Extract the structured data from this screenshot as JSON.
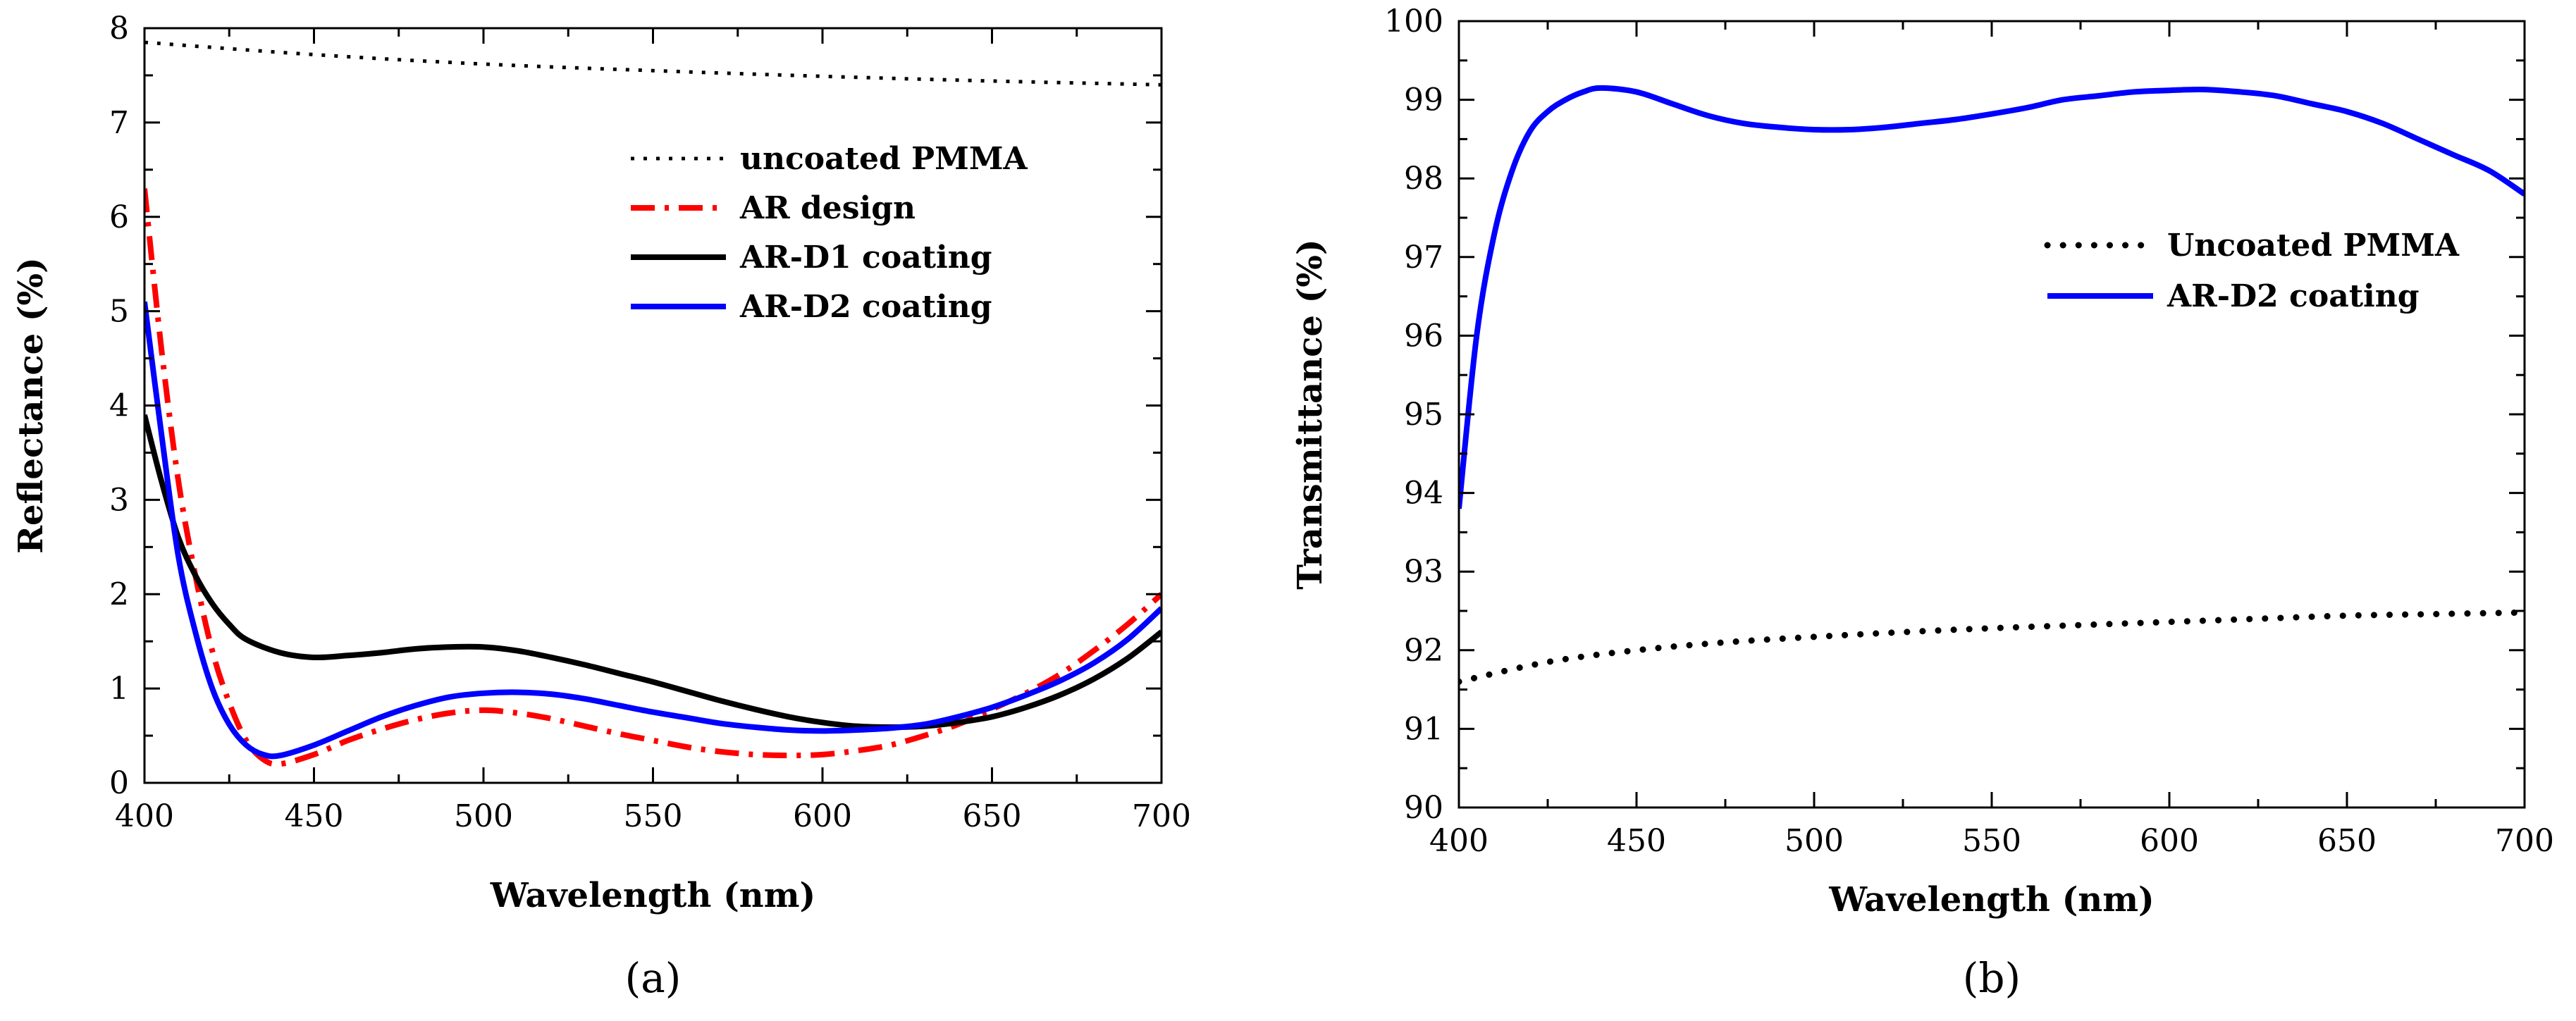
{
  "chart_data": [
    {
      "type": "line",
      "panel_label": "(a)",
      "xlabel": "Wavelength (nm)",
      "ylabel": "Reflectance (%)",
      "xlim": [
        400,
        700
      ],
      "ylim": [
        0,
        8
      ],
      "xticks": [
        400,
        450,
        500,
        550,
        600,
        650,
        700
      ],
      "yticks": [
        0,
        1,
        2,
        3,
        4,
        5,
        6,
        7,
        8
      ],
      "legend_position": "upper-right",
      "series": [
        {
          "name": "uncoated PMMA",
          "color": "#000000",
          "style": "dotted",
          "x": [
            400,
            450,
            500,
            550,
            600,
            650,
            700
          ],
          "y": [
            7.85,
            7.72,
            7.62,
            7.55,
            7.49,
            7.44,
            7.4
          ]
        },
        {
          "name": "AR design",
          "color": "#ff0000",
          "style": "dashdot",
          "x": [
            400,
            405,
            410,
            415,
            420,
            425,
            430,
            435,
            440,
            450,
            460,
            470,
            480,
            490,
            500,
            510,
            520,
            530,
            540,
            550,
            560,
            570,
            580,
            590,
            600,
            610,
            620,
            630,
            640,
            650,
            660,
            670,
            680,
            690,
            700
          ],
          "y": [
            6.3,
            4.6,
            3.2,
            2.2,
            1.4,
            0.85,
            0.45,
            0.25,
            0.2,
            0.3,
            0.45,
            0.57,
            0.67,
            0.74,
            0.77,
            0.74,
            0.68,
            0.6,
            0.52,
            0.45,
            0.38,
            0.33,
            0.3,
            0.29,
            0.3,
            0.34,
            0.4,
            0.5,
            0.62,
            0.78,
            0.95,
            1.15,
            1.4,
            1.68,
            2.0
          ]
        },
        {
          "name": "AR-D1 coating",
          "color": "#000000",
          "style": "solid",
          "x": [
            400,
            405,
            410,
            415,
            420,
            425,
            430,
            440,
            450,
            460,
            470,
            480,
            490,
            500,
            510,
            520,
            530,
            540,
            550,
            560,
            570,
            580,
            590,
            600,
            610,
            620,
            630,
            640,
            650,
            660,
            670,
            680,
            690,
            700
          ],
          "y": [
            3.9,
            3.2,
            2.6,
            2.2,
            1.9,
            1.68,
            1.52,
            1.38,
            1.33,
            1.35,
            1.38,
            1.42,
            1.44,
            1.44,
            1.4,
            1.33,
            1.25,
            1.16,
            1.07,
            0.97,
            0.87,
            0.78,
            0.7,
            0.64,
            0.6,
            0.59,
            0.6,
            0.64,
            0.7,
            0.8,
            0.93,
            1.1,
            1.32,
            1.6
          ]
        },
        {
          "name": "AR-D2 coating",
          "color": "#0000ff",
          "style": "solid",
          "x": [
            400,
            405,
            410,
            415,
            420,
            425,
            430,
            435,
            440,
            450,
            460,
            470,
            480,
            490,
            500,
            510,
            520,
            530,
            540,
            550,
            560,
            570,
            580,
            590,
            600,
            610,
            620,
            630,
            640,
            650,
            660,
            670,
            680,
            690,
            700
          ],
          "y": [
            5.1,
            3.7,
            2.4,
            1.6,
            1.0,
            0.62,
            0.4,
            0.3,
            0.29,
            0.4,
            0.55,
            0.7,
            0.82,
            0.91,
            0.95,
            0.96,
            0.94,
            0.89,
            0.82,
            0.75,
            0.69,
            0.63,
            0.59,
            0.56,
            0.55,
            0.56,
            0.58,
            0.62,
            0.7,
            0.8,
            0.93,
            1.08,
            1.27,
            1.52,
            1.85
          ]
        }
      ]
    },
    {
      "type": "line",
      "panel_label": "(b)",
      "xlabel": "Wavelength (nm)",
      "ylabel": "Transmittance (%)",
      "xlim": [
        400,
        700
      ],
      "ylim": [
        90,
        100
      ],
      "xticks": [
        400,
        450,
        500,
        550,
        600,
        650,
        700
      ],
      "yticks": [
        90,
        91,
        92,
        93,
        94,
        95,
        96,
        97,
        98,
        99,
        100
      ],
      "legend_position": "right",
      "series": [
        {
          "name": "Uncoated PMMA",
          "color": "#000000",
          "style": "dotted",
          "x": [
            400,
            425,
            450,
            475,
            500,
            525,
            550,
            575,
            600,
            625,
            650,
            675,
            700
          ],
          "y": [
            91.6,
            91.85,
            92.0,
            92.1,
            92.17,
            92.23,
            92.28,
            92.32,
            92.36,
            92.4,
            92.44,
            92.46,
            92.48
          ]
        },
        {
          "name": "AR-D2 coating",
          "color": "#0000ff",
          "style": "solid",
          "x": [
            400,
            405,
            410,
            415,
            420,
            425,
            430,
            435,
            440,
            450,
            460,
            470,
            480,
            490,
            500,
            510,
            520,
            530,
            540,
            550,
            560,
            570,
            580,
            590,
            600,
            610,
            620,
            630,
            640,
            650,
            660,
            670,
            680,
            690,
            700
          ],
          "y": [
            93.8,
            96.0,
            97.3,
            98.1,
            98.6,
            98.85,
            99.0,
            99.1,
            99.15,
            99.1,
            98.95,
            98.8,
            98.7,
            98.65,
            98.62,
            98.62,
            98.65,
            98.7,
            98.75,
            98.82,
            98.9,
            99.0,
            99.05,
            99.1,
            99.12,
            99.13,
            99.1,
            99.05,
            98.95,
            98.85,
            98.7,
            98.5,
            98.3,
            98.1,
            97.8
          ]
        }
      ]
    }
  ]
}
